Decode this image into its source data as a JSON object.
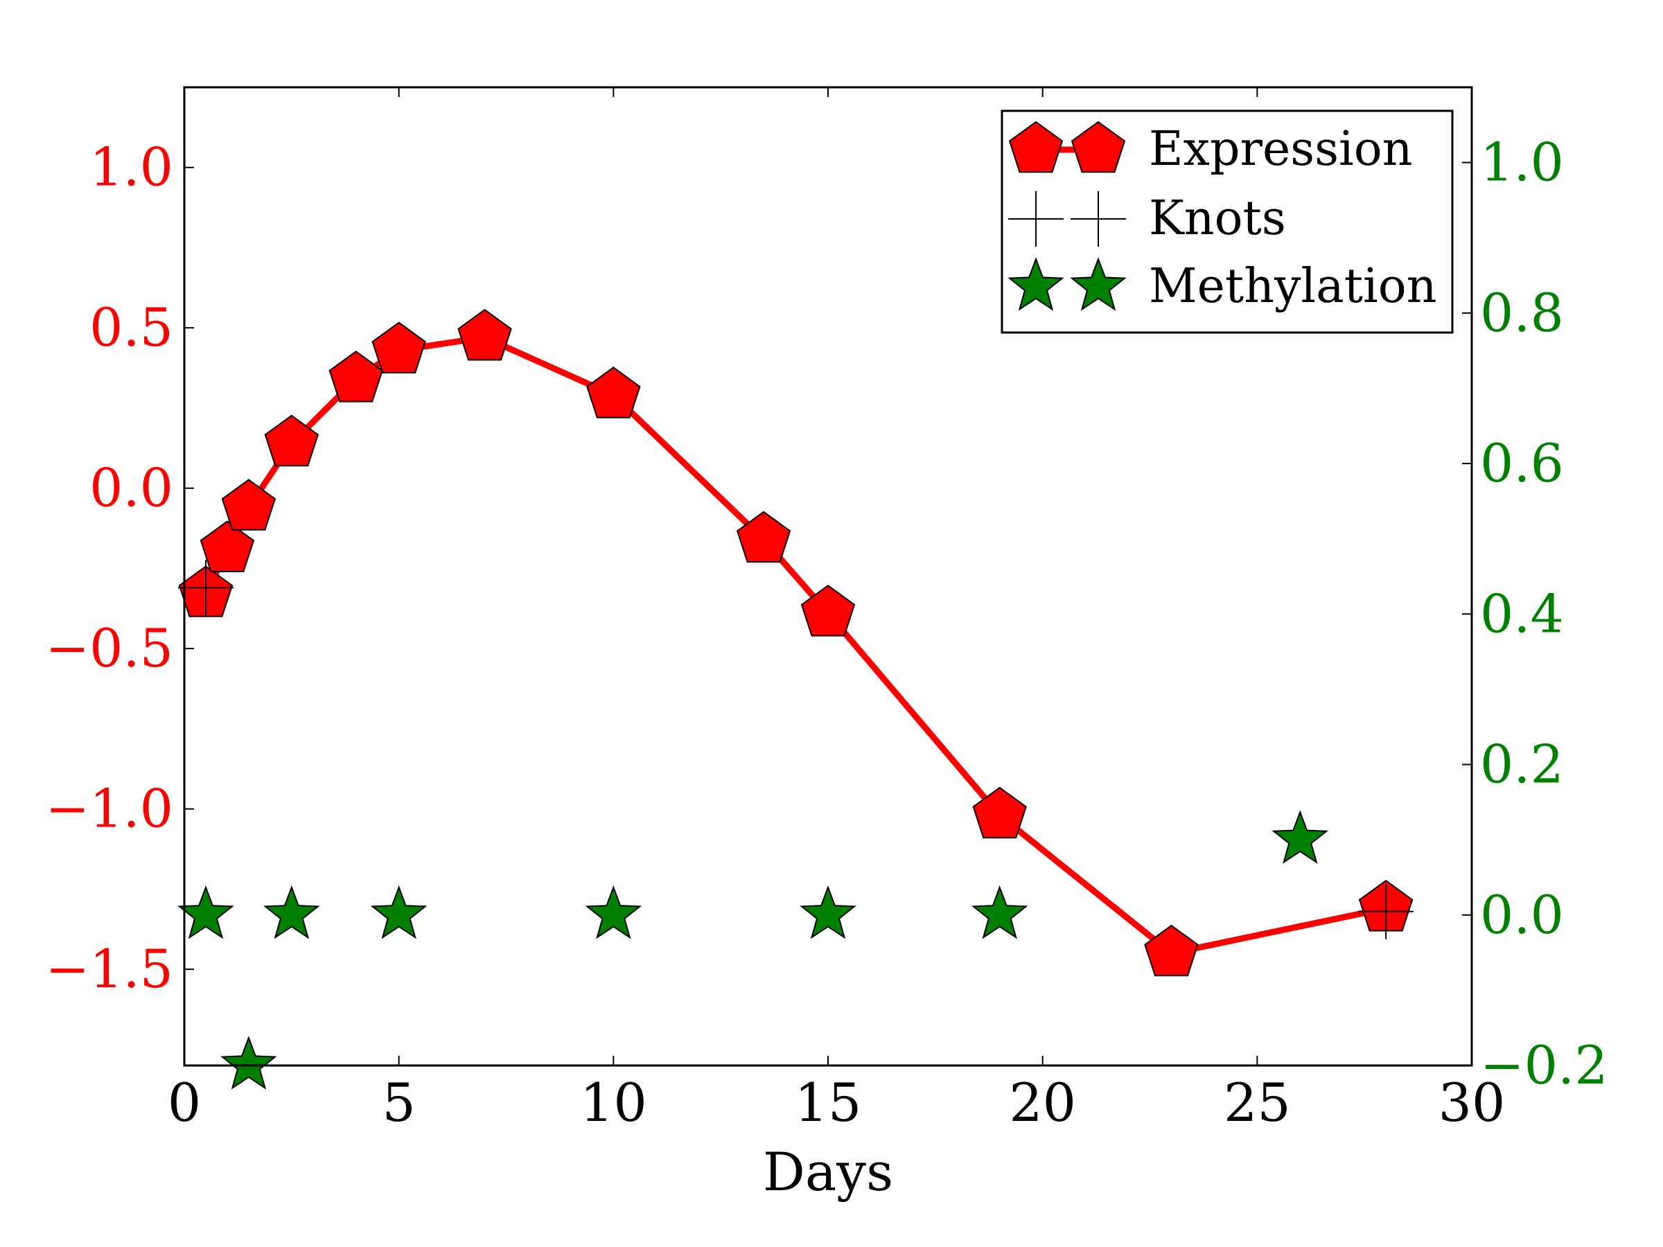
{
  "chart_data": {
    "type": "line",
    "title": "",
    "xlabel": "Days",
    "xlim": [
      0,
      30
    ],
    "x_ticks": [
      0,
      5,
      10,
      15,
      20,
      25,
      30
    ],
    "ylim_left": [
      -1.8,
      1.25
    ],
    "y_ticks_left": [
      -1.5,
      -1.0,
      -0.5,
      0.0,
      0.5,
      1.0
    ],
    "ylim_right": [
      -0.2,
      1.1
    ],
    "y_ticks_right": [
      -0.2,
      0.0,
      0.2,
      0.4,
      0.6,
      0.8,
      1.0
    ],
    "grid": false,
    "legend_position": "upper-right",
    "colors": {
      "expression": "#ff0000",
      "methylation": "#008000",
      "knots": "#000000",
      "left_axis": "#ff0000",
      "right_axis": "#008000"
    },
    "series": [
      {
        "name": "Expression",
        "axis": "left",
        "marker": "pentagon",
        "x": [
          0.5,
          1.0,
          1.5,
          2.5,
          4.0,
          5.0,
          7.0,
          10.0,
          13.5,
          15.0,
          19.0,
          23.0,
          28.0
        ],
        "y": [
          -0.33,
          -0.19,
          -0.06,
          0.14,
          0.34,
          0.43,
          0.47,
          0.29,
          -0.16,
          -0.39,
          -1.02,
          -1.45,
          -1.31
        ]
      },
      {
        "name": "Knots",
        "axis": "left",
        "marker": "plus",
        "x": [
          0.5,
          28.0
        ],
        "y": [
          -0.31,
          -1.32
        ]
      },
      {
        "name": "Methylation",
        "axis": "right",
        "marker": "star",
        "x": [
          0.5,
          1.5,
          2.5,
          5.0,
          10.0,
          15.0,
          19.0,
          26.0
        ],
        "y": [
          0.0,
          -0.2,
          0.0,
          0.0,
          0.0,
          0.0,
          0.0,
          0.1
        ]
      }
    ]
  }
}
